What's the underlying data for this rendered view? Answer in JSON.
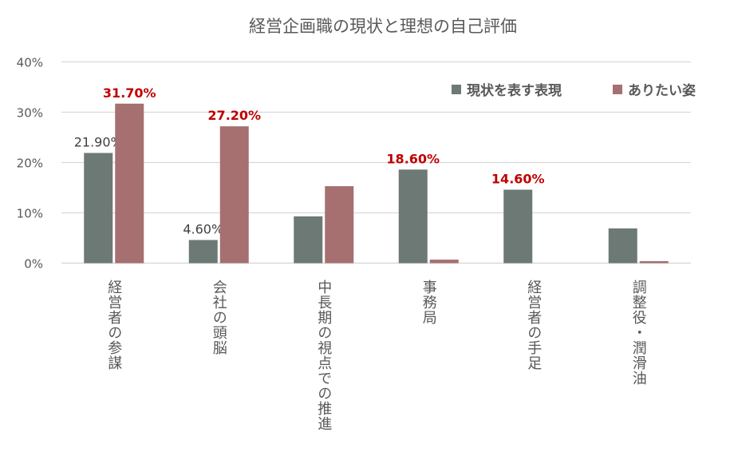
{
  "chart_data": {
    "type": "bar",
    "title": "経営企画職の現状と理想の自己評価",
    "xlabel": "",
    "ylabel": "",
    "ylim": [
      0,
      40
    ],
    "yticks": [
      "0%",
      "10%",
      "20%",
      "30%",
      "40%"
    ],
    "ytick_values": [
      0,
      10,
      20,
      30,
      40
    ],
    "grid": true,
    "legend_position": "top-right",
    "categories": [
      "経営者の参謀",
      "会社の頭脳",
      "中長期の視点での推進",
      "事務局",
      "経営者の手足",
      "調整役・潤滑油"
    ],
    "series": [
      {
        "name": "現状を表す表現",
        "color": "#6d7974",
        "values": [
          21.9,
          4.6,
          9.3,
          18.6,
          14.6,
          6.9
        ],
        "labels": [
          "21.90%",
          "4.60%",
          null,
          "18.60%",
          "14.60%",
          null
        ],
        "label_colors": [
          "#404040",
          "#404040",
          null,
          "#c00000",
          "#c00000",
          null
        ]
      },
      {
        "name": "ありたい姿",
        "color": "#a5706f",
        "values": [
          31.7,
          27.2,
          15.3,
          0.7,
          0,
          0.4
        ],
        "labels": [
          "31.70%",
          "27.20%",
          null,
          null,
          null,
          null
        ],
        "label_colors": [
          "#c00000",
          "#c00000",
          null,
          null,
          null,
          null
        ]
      }
    ]
  }
}
